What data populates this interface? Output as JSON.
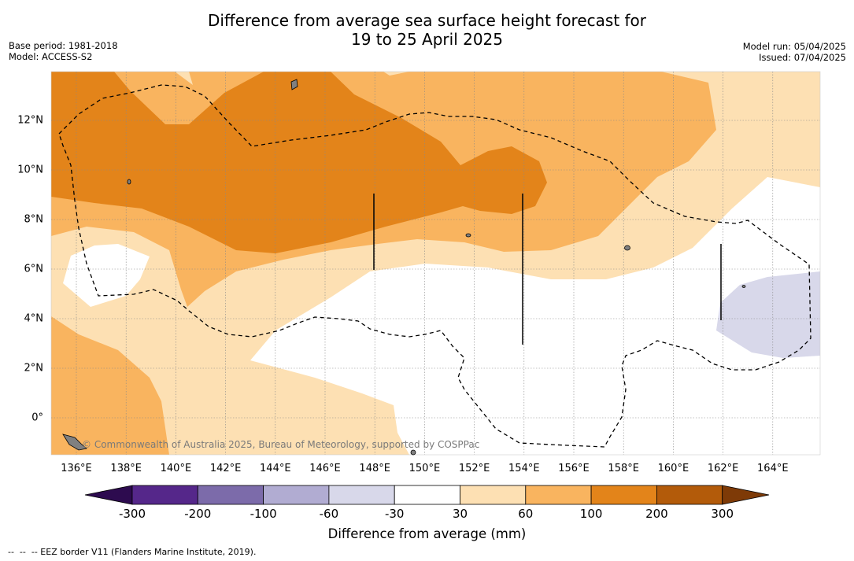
{
  "title_line1": "Difference from average sea surface height forecast for",
  "title_line2": "19 to 25 April 2025",
  "base_period": "Base period: 1981-2018",
  "model": "Model: ACCESS-S2",
  "model_run": "Model run: 05/04/2025",
  "issued": "Issued: 07/04/2025",
  "copyright": "© Commonwealth of Australia 2025, Bureau of Meteorology, supported by COSPPac",
  "x_ticks": [
    "136°E",
    "138°E",
    "140°E",
    "142°E",
    "144°E",
    "146°E",
    "148°E",
    "150°E",
    "152°E",
    "154°E",
    "156°E",
    "158°E",
    "160°E",
    "162°E",
    "164°E"
  ],
  "y_ticks": [
    "12°N",
    "10°N",
    "8°N",
    "6°N",
    "4°N",
    "2°N",
    "0°"
  ],
  "colorbar": {
    "title": "Difference from average (mm)",
    "labels": [
      "-300",
      "-200",
      "-100",
      "-60",
      "-30",
      "30",
      "60",
      "100",
      "200",
      "300"
    ],
    "colors": [
      "#55278a",
      "#7c6baa",
      "#b1acd2",
      "#d8d8ea",
      "#ffffff",
      "#fde0b3",
      "#f9b45f",
      "#e3841a",
      "#b35b0a"
    ],
    "under_color": "#2d0b4f",
    "over_color": "#7e3a07"
  },
  "footnote": "--  --  -- EEZ border V11 (Flanders Marine Institute, 2019).",
  "map_colors": {
    "c30": "#fde0b3",
    "c60": "#f9b45f",
    "c100": "#e3841a",
    "cneg": "#d8d8ea"
  }
}
